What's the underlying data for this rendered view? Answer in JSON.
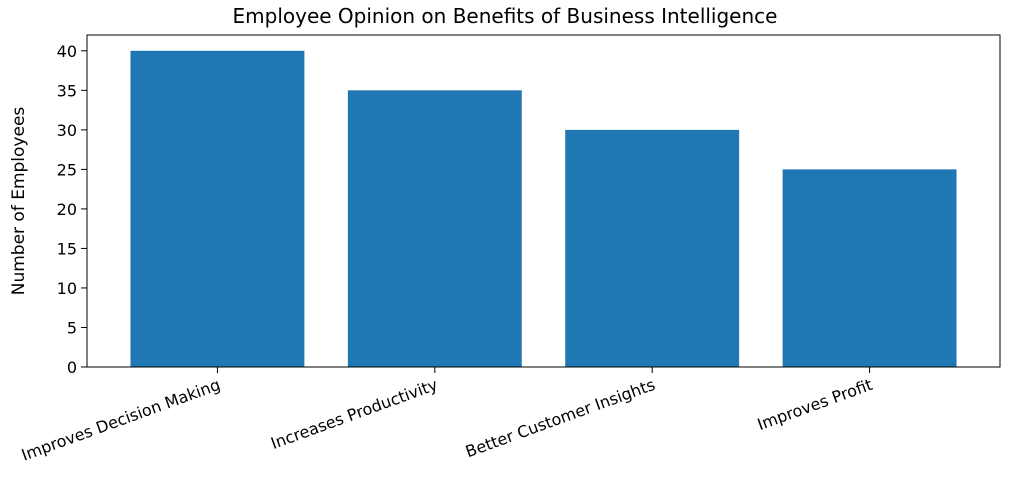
{
  "chart_data": {
    "type": "bar",
    "title": "Employee Opinion on Benefits of Business Intelligence",
    "xlabel": "",
    "ylabel": "Number of Employees",
    "categories": [
      "Improves Decision Making",
      "Increases Productivity",
      "Better Customer Insights",
      "Improves Profit"
    ],
    "values": [
      40,
      35,
      30,
      25
    ],
    "ylim": [
      0,
      42
    ],
    "yticks": [
      0,
      5,
      10,
      15,
      20,
      25,
      30,
      35,
      40
    ],
    "grid": false,
    "bar_color": "#1f77b4"
  }
}
